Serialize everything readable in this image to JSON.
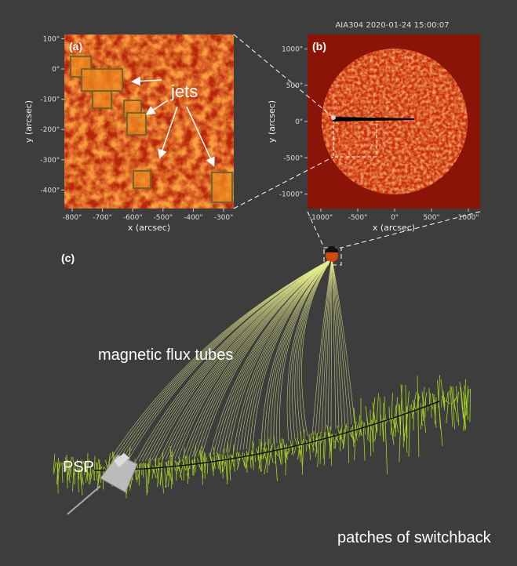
{
  "panel_a": {
    "label": "(a)",
    "x_label": "x (arcsec)",
    "y_label": "y (arcsec)",
    "x_ticks": [
      {
        "value": -800,
        "label": "-800\""
      },
      {
        "value": -700,
        "label": "-700\""
      },
      {
        "value": -600,
        "label": "-600\""
      },
      {
        "value": -500,
        "label": "-500\""
      },
      {
        "value": -400,
        "label": "-400\""
      },
      {
        "value": -300,
        "label": "-300\""
      }
    ],
    "y_ticks": [
      {
        "value": 100,
        "label": "100\""
      },
      {
        "value": 0,
        "label": "0\""
      },
      {
        "value": -100,
        "label": "-100\""
      },
      {
        "value": -200,
        "label": "-200\""
      },
      {
        "value": -300,
        "label": "-300\""
      },
      {
        "value": -400,
        "label": "-400\""
      }
    ],
    "annotation": "jets"
  },
  "panel_b": {
    "label": "(b)",
    "title": "AIA304 2020-01-24 15:00:07",
    "x_label": "x (arcsec)",
    "y_label": "y (arcsec)",
    "x_ticks": [
      {
        "value": -1000,
        "label": "-1000\""
      },
      {
        "value": -500,
        "label": "-500\""
      },
      {
        "value": 0,
        "label": "0\""
      },
      {
        "value": 500,
        "label": "500\""
      },
      {
        "value": 1000,
        "label": "1000\""
      }
    ],
    "y_ticks": [
      {
        "value": 1000,
        "label": "1000\""
      },
      {
        "value": 500,
        "label": "500\""
      },
      {
        "value": 0,
        "label": "0\""
      },
      {
        "value": -500,
        "label": "-500\""
      },
      {
        "value": -1000,
        "label": "-1000\""
      }
    ]
  },
  "panel_c": {
    "label": "(c)",
    "flux_tubes_label": "magnetic flux tubes",
    "spacecraft_label": "PSP",
    "switchback_label": "patches of switchback"
  }
}
